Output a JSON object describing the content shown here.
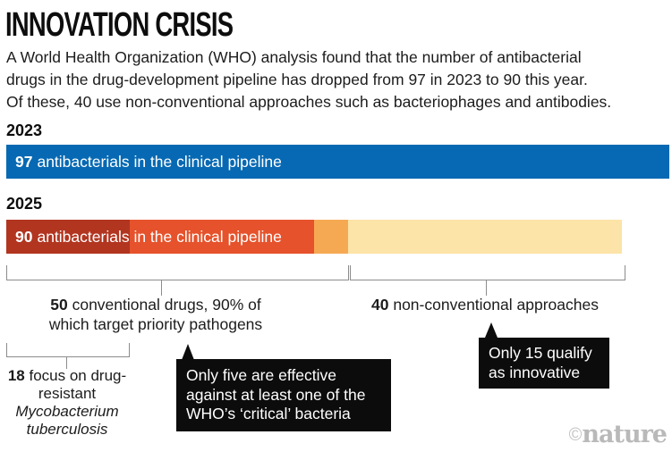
{
  "title": "INNOVATION CRISIS",
  "intro_lines": [
    "A World Health Organization (WHO) analysis found that the number of antibacterial",
    "drugs in the drug-development pipeline has dropped from 97 in 2023 to 90 this year.",
    "Of these, 40 use non-conventional approaches such as bacteriophages and antibodies."
  ],
  "chart_data": {
    "type": "bar",
    "orientation": "horizontal",
    "title": "INNOVATION CRISIS",
    "unit": "antibacterial drugs in the clinical pipeline",
    "scale_max": 97,
    "bars": [
      {
        "year": "2023",
        "total": 97,
        "label": {
          "bold": "97",
          "rest": "antibacterials in the clinical pipeline"
        },
        "segments": [
          {
            "name": "all-antibacterials",
            "value": 97,
            "color": "#0769b3"
          }
        ]
      },
      {
        "year": "2025",
        "total": 90,
        "label": {
          "bold": "90",
          "rest": "antibacterials in the clinical pipeline"
        },
        "segments": [
          {
            "name": "tb-focused-conventional",
            "value": 18,
            "color": "#b23520"
          },
          {
            "name": "other-conventional",
            "value": 27,
            "color": "#e5522b"
          },
          {
            "name": "effective-against-critical",
            "value": 5,
            "color": "#f6a953"
          },
          {
            "name": "non-conventional",
            "value": 40,
            "color": "#fce3a8"
          }
        ]
      }
    ],
    "annotations": {
      "conventional": {
        "bold": "50",
        "rest": " conventional drugs, 90% of which target priority pathogens"
      },
      "nonconventional": {
        "bold": "40",
        "rest": " non-conventional approaches"
      },
      "tuberculosis": {
        "bold": "18",
        "rest": " focus on drug-resistant ",
        "italic": "Mycobacterium tuberculosis"
      },
      "callout_critical": "Only five are effective against at least one of the WHO’s ‘critical’ bacteria",
      "callout_innovative": "Only 15 qualify as innovative"
    }
  },
  "credit": {
    "symbol": "©",
    "name": "nature"
  }
}
